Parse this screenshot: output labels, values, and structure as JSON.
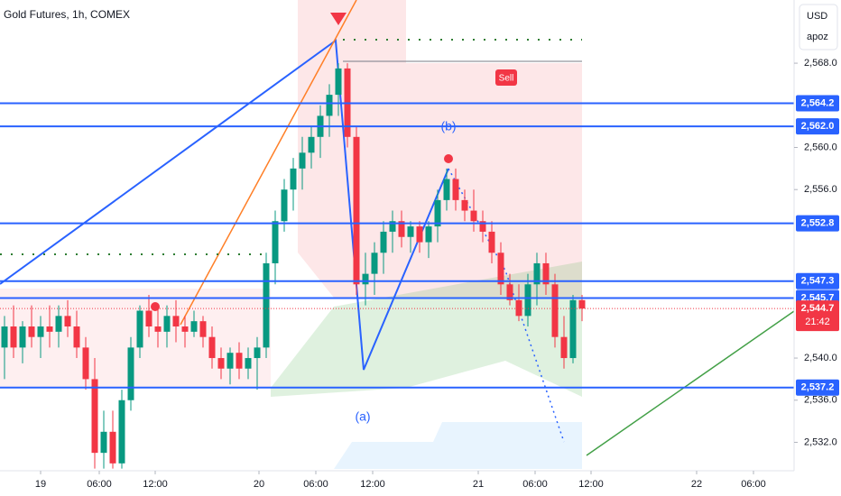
{
  "chart_data": {
    "type": "candlestick",
    "title": "Gold Futures, 1h, COMEX",
    "currency": "USD",
    "account": "apoz",
    "up_color": "#089981",
    "down_color": "#f23645",
    "level_color": "#2962ff",
    "open": [
      2541,
      2543,
      2541,
      2543,
      2542,
      2543,
      2542.5,
      2544,
      2543,
      2541,
      2538,
      2531,
      2533,
      2530,
      2536,
      2541,
      2544.5,
      2543,
      2542.5,
      2544,
      2543,
      2542.5,
      2543.5,
      2542,
      2540,
      2539,
      2540.5,
      2539,
      2540,
      2541,
      2549,
      2553,
      2556,
      2558,
      2559.5,
      2561,
      2563,
      2565,
      2567.5,
      2561,
      2547,
      2548,
      2550,
      2552,
      2553,
      2551.5,
      2552.5,
      2551,
      2552.5,
      2555,
      2557,
      2555,
      2554,
      2553,
      2552,
      2550,
      2547,
      2545.5,
      2544,
      2547,
      2549,
      2547,
      2542,
      2540,
      2545.5
    ],
    "high": [
      2544,
      2545,
      2543.5,
      2545,
      2544,
      2545,
      2545,
      2545.5,
      2544.5,
      2542,
      2540,
      2535,
      2535,
      2537,
      2542,
      2545,
      2546,
      2545,
      2545,
      2545.5,
      2544,
      2544.5,
      2544,
      2543,
      2541,
      2541,
      2541.5,
      2541,
      2542,
      2550,
      2554,
      2557,
      2559,
      2561,
      2562,
      2564,
      2566,
      2568,
      2568,
      2562,
      2550,
      2551,
      2553,
      2554,
      2554,
      2553,
      2553,
      2553,
      2556,
      2558,
      2558,
      2556,
      2556,
      2554,
      2553,
      2551,
      2548,
      2547,
      2548,
      2550,
      2550,
      2548,
      2544,
      2546,
      2546
    ],
    "low": [
      2538,
      2540,
      2539.5,
      2541,
      2540,
      2541,
      2541,
      2542,
      2540,
      2537,
      2529.5,
      2529.5,
      2529.5,
      2529.5,
      2535,
      2540,
      2542,
      2541,
      2541,
      2541.5,
      2541,
      2542,
      2541,
      2539,
      2538,
      2537.5,
      2538,
      2538,
      2537,
      2540,
      2547,
      2552,
      2554,
      2556,
      2558,
      2559,
      2561,
      2563,
      2560,
      2546,
      2545,
      2546,
      2548,
      2550,
      2550.5,
      2550,
      2550,
      2549.5,
      2551,
      2554,
      2554,
      2553,
      2552,
      2551,
      2549,
      2546,
      2545,
      2543.5,
      2543,
      2545,
      2546,
      2541,
      2539,
      2539.5,
      2543.5
    ],
    "close": [
      2543,
      2541,
      2543,
      2542,
      2543,
      2542.5,
      2544,
      2543,
      2541,
      2538,
      2531,
      2533,
      2530,
      2536,
      2541,
      2544.5,
      2543,
      2542.5,
      2544,
      2543,
      2542.5,
      2543.5,
      2542,
      2540,
      2539,
      2540.5,
      2539,
      2540,
      2541,
      2549,
      2553,
      2556,
      2558,
      2559.5,
      2561,
      2563,
      2565,
      2567.5,
      2561,
      2547,
      2548,
      2550,
      2552,
      2553,
      2551.5,
      2552.5,
      2551,
      2552.5,
      2555,
      2557,
      2555,
      2554,
      2553,
      2552,
      2550,
      2547,
      2545.5,
      2544,
      2547,
      2549,
      2547,
      2542,
      2540,
      2545.5,
      2544.7
    ],
    "xlim": [
      -0.5,
      87.5
    ],
    "xticks": [
      {
        "value": 4,
        "label": "19"
      },
      {
        "value": 10.5,
        "label": "06:00"
      },
      {
        "value": 16.7,
        "label": "12:00"
      },
      {
        "value": 28.2,
        "label": "20"
      },
      {
        "value": 34.5,
        "label": "06:00"
      },
      {
        "value": 40.8,
        "label": "12:00"
      },
      {
        "value": 52.5,
        "label": "21"
      },
      {
        "value": 58.8,
        "label": "06:00"
      },
      {
        "value": 65,
        "label": "12:00"
      },
      {
        "value": 76.7,
        "label": "22"
      },
      {
        "value": 83,
        "label": "06:00"
      }
    ],
    "ylim": [
      2529.3,
      2574
    ],
    "yticks": [
      {
        "value": 2568,
        "label": "2,568.0"
      },
      {
        "value": 2560,
        "label": "2,560.0"
      },
      {
        "value": 2556,
        "label": "2,556.0"
      },
      {
        "value": 2540,
        "label": "2,540.0"
      },
      {
        "value": 2536,
        "label": "2,536.0"
      },
      {
        "value": 2532,
        "label": "2,532.0"
      }
    ],
    "levels": [
      {
        "value": 2564.2,
        "label": "2,564.2"
      },
      {
        "value": 2562,
        "label": "2,562.0"
      },
      {
        "value": 2552.8,
        "label": "2,552.8"
      },
      {
        "value": 2547.3,
        "label": "2,547.3"
      },
      {
        "value": 2545.7,
        "label": "2,545.7"
      },
      {
        "value": 2537.2,
        "label": "2,537.2"
      }
    ],
    "current": {
      "value": 2544.7,
      "label": "2,544.7",
      "countdown": "21:42"
    },
    "annotations": [
      "Sell",
      "(b)",
      "(a)"
    ]
  }
}
